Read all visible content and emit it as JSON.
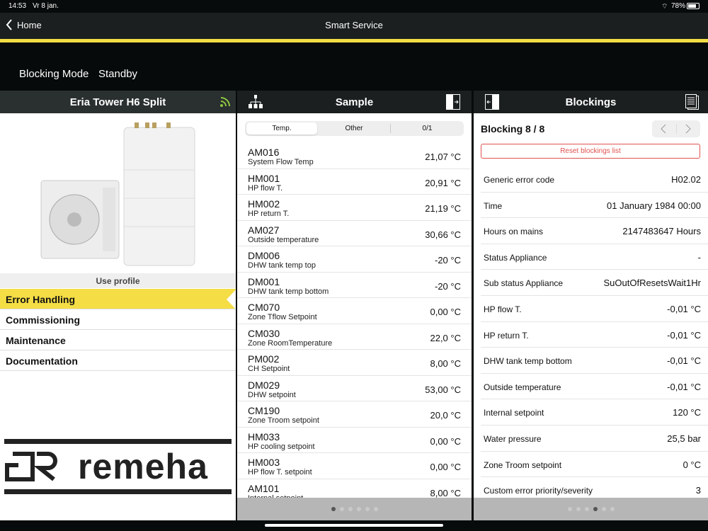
{
  "status": {
    "time": "14:53",
    "date": "Vr 8 jan.",
    "battery": "78%"
  },
  "nav": {
    "back": "Home",
    "title": "Smart Service"
  },
  "mode": {
    "label": "Blocking Mode",
    "value": "Standby"
  },
  "left": {
    "title": "Eria Tower H6 Split",
    "use_profile": "Use profile",
    "menu": [
      "Error Handling",
      "Commissioning",
      "Maintenance",
      "Documentation"
    ],
    "selected": 0,
    "logo_text": "remeha"
  },
  "middle": {
    "title": "Sample",
    "segments": [
      "Temp.",
      "Other",
      "0/1"
    ],
    "selected_segment": 0,
    "rows": [
      {
        "code": "AM016",
        "desc": "System Flow Temp",
        "value": "21,07 °C"
      },
      {
        "code": "HM001",
        "desc": "HP flow T.",
        "value": "20,91 °C"
      },
      {
        "code": "HM002",
        "desc": "HP return T.",
        "value": "21,19 °C"
      },
      {
        "code": "AM027",
        "desc": "Outside temperature",
        "value": "30,66 °C"
      },
      {
        "code": "DM006",
        "desc": "DHW tank temp top",
        "value": "-20 °C"
      },
      {
        "code": "DM001",
        "desc": "DHW tank temp bottom",
        "value": "-20 °C"
      },
      {
        "code": "CM070",
        "desc": "Zone Tflow Setpoint",
        "value": "0,00 °C"
      },
      {
        "code": "CM030",
        "desc": "Zone RoomTemperature",
        "value": "22,0 °C"
      },
      {
        "code": "PM002",
        "desc": "CH Setpoint",
        "value": "8,00 °C"
      },
      {
        "code": "DM029",
        "desc": "DHW setpoint",
        "value": "53,00 °C"
      },
      {
        "code": "CM190",
        "desc": "Zone Troom setpoint",
        "value": "20,0 °C"
      },
      {
        "code": "HM033",
        "desc": "HP cooling setpoint",
        "value": "0,00 °C"
      },
      {
        "code": "HM003",
        "desc": "HP flow T. setpoint",
        "value": "0,00 °C"
      },
      {
        "code": "AM101",
        "desc": "Internal setpoint",
        "value": "8,00 °C"
      }
    ],
    "page": 1,
    "pages": 6
  },
  "right": {
    "title": "Blockings",
    "blocking": "Blocking 8 / 8",
    "reset": "Reset blockings list",
    "rows": [
      {
        "label": "Generic error code",
        "value": "H02.02"
      },
      {
        "label": "Time",
        "value": "01 January 1984 00:00"
      },
      {
        "label": "Hours on mains",
        "value": "2147483647 Hours"
      },
      {
        "label": "Status Appliance",
        "value": "-"
      },
      {
        "label": "Sub status Appliance",
        "value": "SuOutOfResetsWait1Hr"
      },
      {
        "label": "HP flow T.",
        "value": "-0,01 °C"
      },
      {
        "label": "HP return T.",
        "value": "-0,01 °C"
      },
      {
        "label": "DHW tank temp bottom",
        "value": "-0,01 °C"
      },
      {
        "label": "Outside temperature",
        "value": "-0,01 °C"
      },
      {
        "label": "Internal setpoint",
        "value": "120 °C"
      },
      {
        "label": "Water pressure",
        "value": "25,5 bar"
      },
      {
        "label": "Zone Troom setpoint",
        "value": "0 °C"
      },
      {
        "label": "Custom error priority/severity",
        "value": "3"
      }
    ],
    "page": 4,
    "pages": 6
  },
  "colors": {
    "accent": "#f4dd45",
    "reset": "#e0524f",
    "rss": "#8dc63f"
  }
}
